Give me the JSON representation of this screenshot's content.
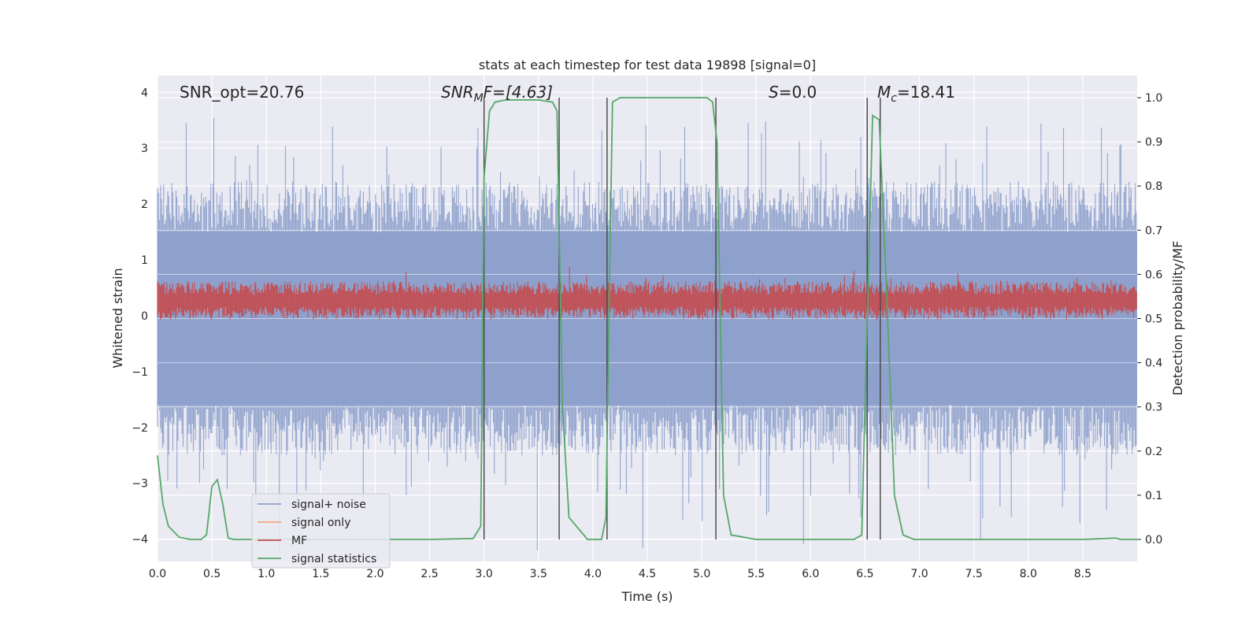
{
  "chart_data": {
    "type": "line",
    "title": "stats at each timestep for test data 19898 [signal=0]",
    "xlabel": "Time (s)",
    "ylabel": "Whitened strain",
    "ylabel_right": "Detection probability/MF",
    "xlim": [
      0.0,
      9.0
    ],
    "ylim": [
      -4.4,
      4.3
    ],
    "ylim_right": [
      -0.05,
      1.05
    ],
    "x_ticks": [
      "0.0",
      "0.5",
      "1.0",
      "1.5",
      "2.0",
      "2.5",
      "3.0",
      "3.5",
      "4.0",
      "4.5",
      "5.0",
      "5.5",
      "6.0",
      "6.5",
      "7.0",
      "7.5",
      "8.0",
      "8.5"
    ],
    "y_ticks": [
      "4",
      "3",
      "2",
      "1",
      "0",
      "−1",
      "−2",
      "−3",
      "−4"
    ],
    "y_ticks_right": [
      "1.0",
      "0.9",
      "0.8",
      "0.7",
      "0.6",
      "0.5",
      "0.4",
      "0.3",
      "0.2",
      "0.1",
      "0.0"
    ],
    "grid": true,
    "legend_position": "lower-left",
    "annotations": {
      "snr_opt": "SNR_opt=20.76",
      "snr_mf_base": "SNR",
      "snr_mf_sub": "M",
      "snr_mf_rest": "F=[4.63]",
      "s_italic": "S",
      "s_rest": "=0.0",
      "mc_base": "M",
      "mc_sub": "c",
      "mc_rest": "=18.41"
    },
    "series": [
      {
        "name": "signal+ noise",
        "color": "#8da0cb",
        "style": "noise band, approximately -2.5 to 2.5 whitened strain with spikes to ±4"
      },
      {
        "name": "signal only",
        "color": "#f4a582",
        "values": []
      },
      {
        "name": "MF",
        "color": "#c44e52",
        "style": "band centered near 0.25 whitened strain"
      },
      {
        "name": "signal statistics",
        "color": "#55a868",
        "axis": "right",
        "x": [
          0.0,
          0.05,
          0.1,
          0.2,
          0.3,
          0.4,
          0.45,
          0.5,
          0.55,
          0.6,
          0.65,
          0.7,
          1.0,
          2.0,
          2.5,
          2.9,
          2.97,
          3.0,
          3.05,
          3.1,
          3.2,
          3.5,
          3.63,
          3.67,
          3.72,
          3.78,
          3.95,
          4.08,
          4.12,
          4.15,
          4.18,
          4.25,
          4.8,
          5.05,
          5.1,
          5.14,
          5.2,
          5.27,
          5.5,
          6.0,
          6.4,
          6.47,
          6.52,
          6.57,
          6.63,
          6.7,
          6.77,
          6.85,
          6.95,
          7.5,
          8.5,
          8.8,
          8.85,
          9.0
        ],
        "values": [
          0.19,
          0.08,
          0.03,
          0.005,
          0.0,
          0.0,
          0.01,
          0.12,
          0.135,
          0.08,
          0.003,
          0.0,
          0.0,
          0.0,
          0.0,
          0.002,
          0.03,
          0.82,
          0.97,
          0.99,
          0.995,
          0.995,
          0.99,
          0.97,
          0.3,
          0.05,
          0.0,
          0.0,
          0.05,
          0.55,
          0.99,
          1.0,
          1.0,
          1.0,
          0.99,
          0.9,
          0.1,
          0.01,
          0.0,
          0.0,
          0.0,
          0.01,
          0.5,
          0.96,
          0.95,
          0.55,
          0.1,
          0.01,
          0.0,
          0.0,
          0.0,
          0.003,
          0.0,
          0.0
        ]
      }
    ],
    "vlines": [
      3.0,
      3.69,
      4.13,
      5.13,
      6.52,
      6.64
    ]
  }
}
